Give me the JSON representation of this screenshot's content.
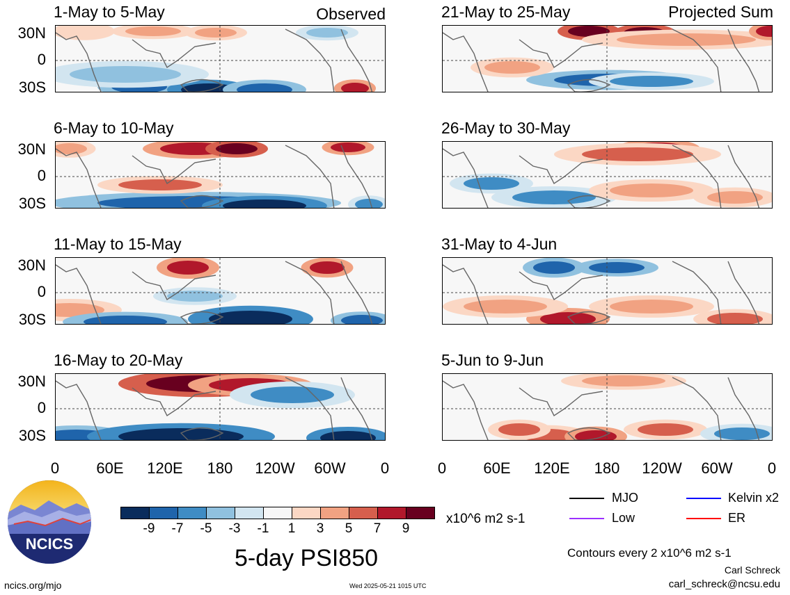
{
  "header": {
    "left_tag": "Observed",
    "right_tag": "Projected Sum"
  },
  "panels_left": [
    {
      "title": "1-May to 5-May"
    },
    {
      "title": "6-May to 10-May"
    },
    {
      "title": "11-May to 15-May"
    },
    {
      "title": "16-May to 20-May"
    }
  ],
  "panels_right": [
    {
      "title": "21-May to 25-May"
    },
    {
      "title": "26-May to 30-May"
    },
    {
      "title": "31-May to 4-Jun"
    },
    {
      "title": "5-Jun to 9-Jun"
    }
  ],
  "axes": {
    "lat_labels": [
      "30N",
      "0",
      "30S"
    ],
    "lon_labels": [
      "0",
      "60E",
      "120E",
      "180",
      "120W",
      "60W",
      "0"
    ]
  },
  "colorbar": {
    "colors": [
      "#0a2c5c",
      "#1f64ab",
      "#3f8cc4",
      "#90c1df",
      "#d2e5f0",
      "#f7f7f7",
      "#fbd7c4",
      "#f1a282",
      "#d65f4d",
      "#b1182b",
      "#68001f"
    ],
    "labels": [
      "-9",
      "-7",
      "-5",
      "-3",
      "-1",
      "1",
      "3",
      "5",
      "7",
      "9"
    ],
    "units": "x10^6 m2 s-1"
  },
  "legend": {
    "mjo": {
      "label": "MJO",
      "color": "#000000"
    },
    "low": {
      "label": "Low",
      "color": "#9b30ff"
    },
    "kelvin": {
      "label": "Kelvin x2",
      "color": "#0000ff"
    },
    "er": {
      "label": "ER",
      "color": "#ff0000"
    }
  },
  "footer": {
    "main_title": "5-day PSI850",
    "contour_note": "Contours every 2 x10^6 m2 s-1",
    "author": "Carl Schreck",
    "email": "carl_schreck@ncsu.edu",
    "site": "ncics.org/mjo",
    "timestamp": "Wed 2025-05-21 1015 UTC",
    "logo_text": "NCICS"
  }
}
